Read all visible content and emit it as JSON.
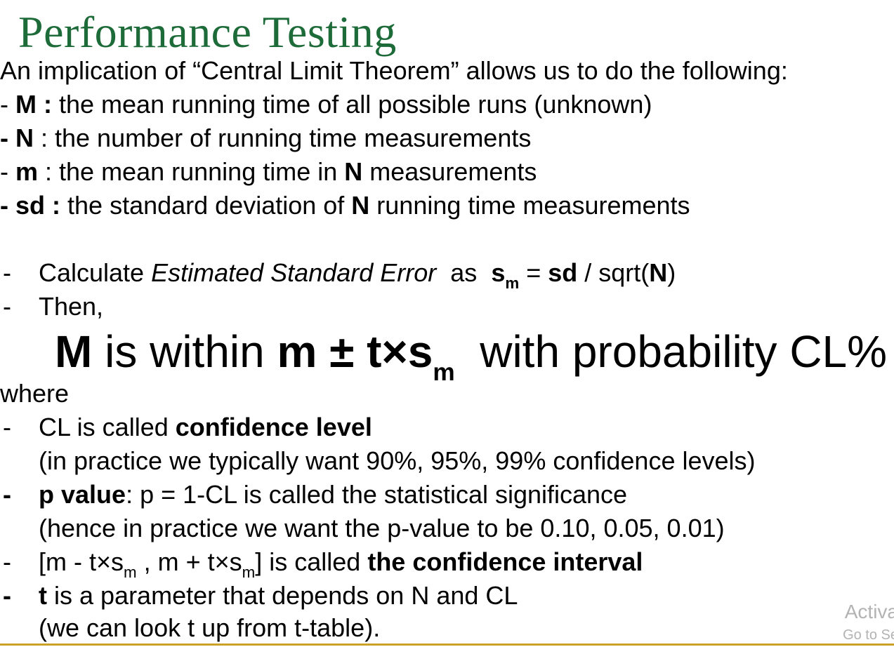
{
  "title": "Performance Testing",
  "intro": "An implication of “Central Limit Theorem” allows us to do the following:",
  "definitions": [
    {
      "dash": "- ",
      "term": "M :",
      "desc": " the mean running time of all possible runs (unknown)"
    },
    {
      "dash": "- ",
      "term": "N",
      "desc": " : the number of running time measurements"
    },
    {
      "dash": "- ",
      "term": "m",
      "desc": " : the mean running time in ",
      "term2": "N",
      "desc2": " measurements"
    },
    {
      "dash": "- ",
      "term": "sd :",
      "desc": " the standard deviation of ",
      "term2": "N",
      "desc2": " running time measurements"
    }
  ],
  "steps": {
    "calc": {
      "dash": "-",
      "prefix": "Calculate ",
      "italic": "Estimated Standard Error",
      "as": "  as  ",
      "s": "s",
      "sub": "m",
      "eq": " = ",
      "sd": "sd",
      "slash": " / sqrt(",
      "N": "N",
      "close": ")"
    },
    "then": {
      "dash": "-",
      "text": "Then,"
    }
  },
  "statement": {
    "M": "M",
    "is_within": " is within ",
    "expr": "m ± t×s",
    "sub": "m",
    "rest": "  with probability CL%"
  },
  "where": "where",
  "notes": {
    "cl": {
      "dash": "-",
      "prefix": "CL is called ",
      "bold": "confidence level"
    },
    "cl_paren": "(in practice we typically want 90%, 95%, 99% confidence levels)",
    "p": {
      "dash": "-",
      "bold": "p value",
      "rest": ": p = 1-CL is called the statistical significance"
    },
    "p_paren": "(hence in practice we want the p-value to be 0.10, 0.05, 0.01)",
    "ci": {
      "dash": "-",
      "part1": "[m - t×s",
      "sub1": "m",
      "part2": " , m + t×s",
      "sub2": "m",
      "part3": "] is called ",
      "bold": "the confidence interval"
    },
    "t": {
      "dash": "-",
      "bold": "t",
      "rest": " is a parameter that depends on N and CL"
    },
    "t_paren": "(we can look t up from t-table)."
  },
  "watermark": {
    "line1": "Activa",
    "line2": "Go to Se"
  },
  "colors": {
    "title": "#1e6b3a",
    "rule": "#c9a227",
    "watermark": "#b3b3b3"
  }
}
